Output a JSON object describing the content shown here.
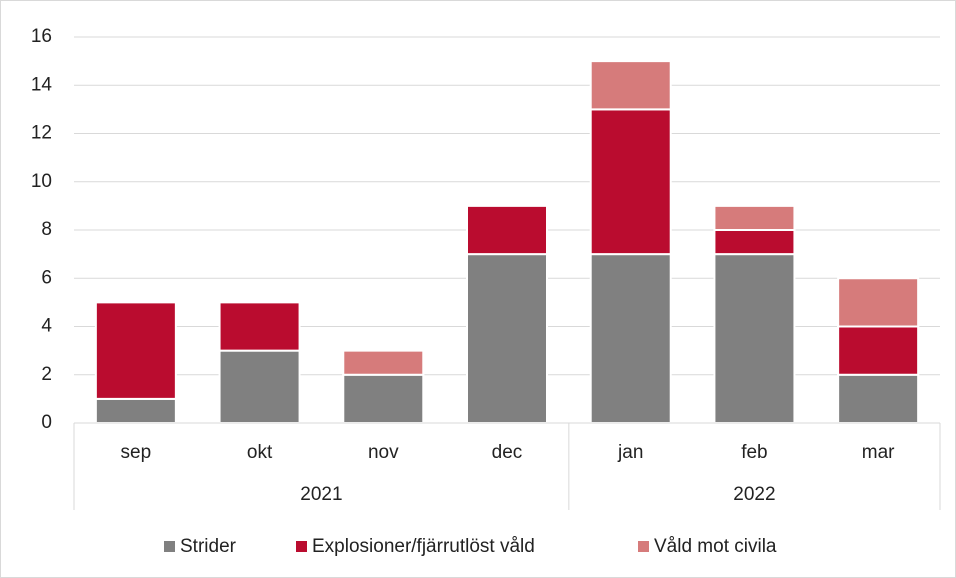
{
  "chart_data": {
    "type": "stacked-bar",
    "categories": [
      "sep",
      "okt",
      "nov",
      "dec",
      "jan",
      "feb",
      "mar"
    ],
    "groups": [
      {
        "label": "2021",
        "size": 4
      },
      {
        "label": "2022",
        "size": 3
      }
    ],
    "series": [
      {
        "name": "Strider",
        "color": "#808080",
        "values": [
          1,
          3,
          2,
          7,
          7,
          7,
          2
        ]
      },
      {
        "name": "Explosioner/fjärrutlöst våld",
        "color": "#ba0c2f",
        "values": [
          4,
          2,
          0,
          2,
          6,
          1,
          2
        ]
      },
      {
        "name": "Våld mot civila",
        "color": "#d67b7b",
        "values": [
          0,
          0,
          1,
          0,
          2,
          1,
          2
        ]
      }
    ],
    "ylim": [
      0,
      16
    ],
    "yticks": [
      0,
      2,
      4,
      6,
      8,
      10,
      12,
      14,
      16
    ],
    "grid": true,
    "legend": "bottom"
  }
}
